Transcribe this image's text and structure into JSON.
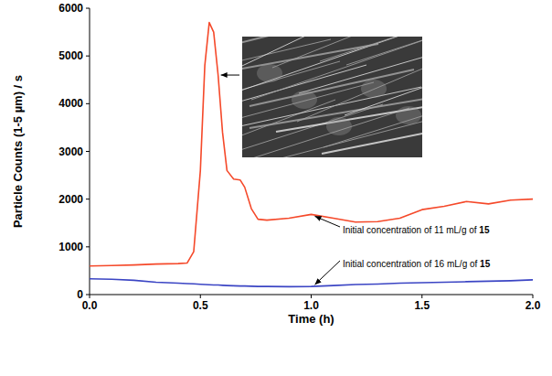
{
  "chart_data": {
    "type": "line",
    "x_label": "Time (h)",
    "y_label": "Particle Counts (1-5 µm) / s",
    "x": [
      0,
      0.1,
      0.2,
      0.3,
      0.4,
      0.44,
      0.47,
      0.5,
      0.52,
      0.54,
      0.56,
      0.58,
      0.6,
      0.62,
      0.65,
      0.68,
      0.7,
      0.73,
      0.76,
      0.8,
      0.9,
      1.0,
      1.1,
      1.2,
      1.3,
      1.4,
      1.5,
      1.6,
      1.7,
      1.8,
      1.9,
      2.0
    ],
    "series": [
      {
        "color": "#f5492a",
        "values": [
          600,
          610,
          620,
          640,
          650,
          660,
          900,
          2600,
          4800,
          5700,
          5500,
          4600,
          3400,
          2600,
          2420,
          2400,
          2250,
          1800,
          1580,
          1560,
          1600,
          1680,
          1600,
          1520,
          1530,
          1600,
          1780,
          1850,
          1950,
          1900,
          1980,
          2000
        ]
      },
      {
        "color": "#3b45c4",
        "values": [
          330,
          320,
          300,
          260,
          240,
          230,
          225,
          215,
          210,
          205,
          200,
          200,
          195,
          190,
          185,
          180,
          180,
          175,
          170,
          170,
          165,
          170,
          190,
          210,
          220,
          240,
          250,
          260,
          270,
          280,
          290,
          310
        ]
      }
    ],
    "xlim": [
      0,
      2
    ],
    "xticks": [
      {
        "value": 0,
        "label": "0.0"
      },
      0.5,
      {
        "value": 1,
        "label": "1.0"
      },
      1.5,
      {
        "value": 2,
        "label": "2.0"
      }
    ],
    "ylim": [
      0,
      6000
    ],
    "yticks": [
      0,
      1000,
      2000,
      3000,
      4000,
      5000,
      6000
    ],
    "grid": false,
    "annotations": [
      {
        "text": "Initial concentration of 11 mL/g of ",
        "compound": "15"
      },
      {
        "text": "Initial concentration of 16 mL/g of ",
        "compound": "15"
      }
    ]
  }
}
